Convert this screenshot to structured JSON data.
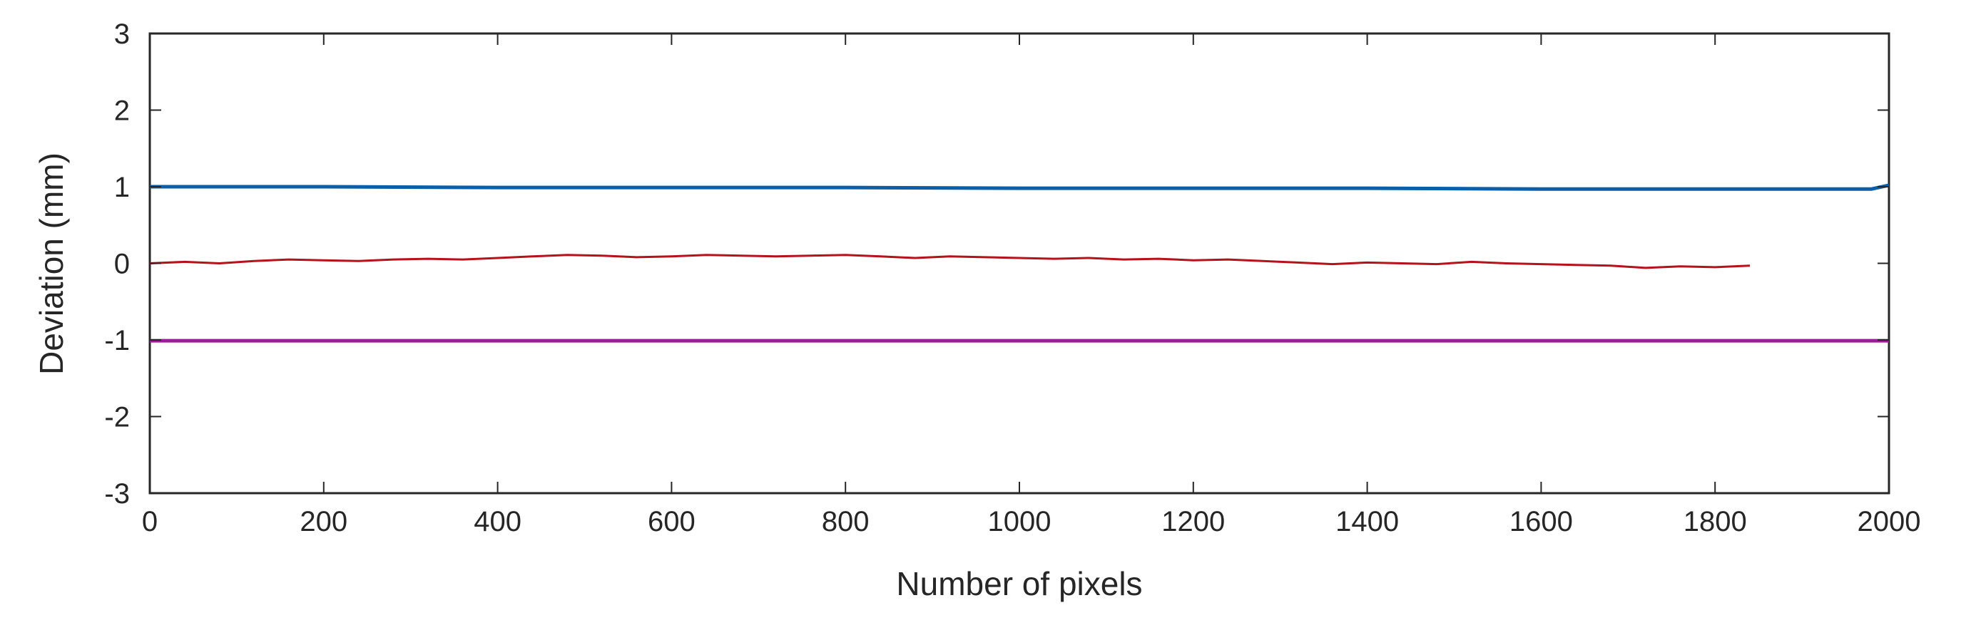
{
  "chart_data": {
    "type": "line",
    "title": "",
    "xlabel": "Number of pixels",
    "ylabel": "Deviation (mm)",
    "xlim": [
      0,
      2000
    ],
    "ylim": [
      -3,
      3
    ],
    "xticks": [
      0,
      200,
      400,
      600,
      800,
      1000,
      1200,
      1400,
      1600,
      1800,
      2000
    ],
    "yticks": [
      -3,
      -2,
      -1,
      0,
      1,
      2,
      3
    ],
    "grid": false,
    "legend": "none",
    "series": [
      {
        "color": "#0b5ea8",
        "x": [
          0,
          200,
          400,
          600,
          800,
          1000,
          1200,
          1400,
          1600,
          1800,
          1980,
          2000
        ],
        "y": [
          1.0,
          1.0,
          0.99,
          0.99,
          0.99,
          0.98,
          0.98,
          0.98,
          0.97,
          0.97,
          0.97,
          1.02
        ]
      },
      {
        "color": "#b5121b",
        "x": [
          0,
          40,
          80,
          120,
          160,
          200,
          240,
          280,
          320,
          360,
          400,
          440,
          480,
          520,
          560,
          600,
          640,
          680,
          720,
          760,
          800,
          840,
          880,
          920,
          960,
          1000,
          1040,
          1080,
          1120,
          1160,
          1200,
          1240,
          1280,
          1320,
          1360,
          1400,
          1440,
          1480,
          1520,
          1560,
          1600,
          1640,
          1680,
          1720,
          1760,
          1800,
          1840
        ],
        "y": [
          0.0,
          0.02,
          0.0,
          0.03,
          0.05,
          0.04,
          0.03,
          0.05,
          0.06,
          0.05,
          0.07,
          0.09,
          0.11,
          0.1,
          0.08,
          0.09,
          0.11,
          0.1,
          0.09,
          0.1,
          0.11,
          0.09,
          0.07,
          0.09,
          0.08,
          0.07,
          0.06,
          0.07,
          0.05,
          0.06,
          0.04,
          0.05,
          0.03,
          0.01,
          -0.01,
          0.01,
          0.0,
          -0.01,
          0.02,
          0.0,
          -0.01,
          -0.02,
          -0.03,
          -0.06,
          -0.04,
          -0.05,
          -0.03
        ]
      },
      {
        "color": "#9c1a9c",
        "x": [
          0,
          2000
        ],
        "y": [
          -1.01,
          -1.01
        ]
      }
    ]
  }
}
